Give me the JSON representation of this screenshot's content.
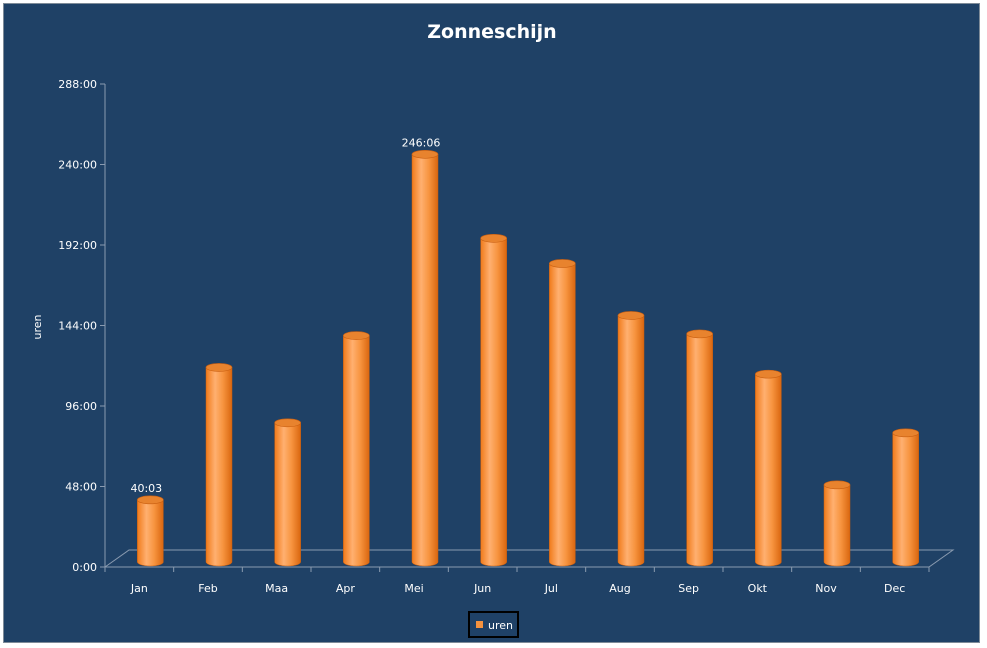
{
  "chart_data": {
    "type": "bar",
    "title": "Zonneschijn",
    "xlabel": "",
    "ylabel": "uren",
    "categories": [
      "Jan",
      "Feb",
      "Maa",
      "Apr",
      "Mei",
      "Jun",
      "Jul",
      "Aug",
      "Sep",
      "Okt",
      "Nov",
      "Dec"
    ],
    "series": [
      {
        "name": "uren",
        "values_hours": [
          40.05,
          119,
          86,
          138,
          246.1,
          196,
          181,
          150,
          139,
          115,
          49,
          80
        ],
        "color": "#f5923e"
      }
    ],
    "data_labels": [
      {
        "category": "Jan",
        "text": "40:03"
      },
      {
        "category": "Mei",
        "text": "246:06"
      }
    ],
    "y_ticks": [
      "0:00",
      "48:00",
      "96:00",
      "144:00",
      "192:00",
      "240:00",
      "288:00"
    ],
    "ylim_hours": [
      0,
      288
    ],
    "grid": false,
    "legend_position": "bottom",
    "bar_style": "3d-cylinder"
  }
}
